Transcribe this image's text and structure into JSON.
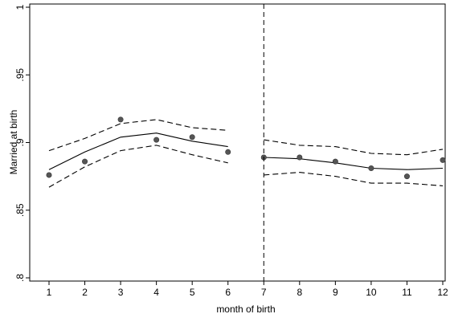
{
  "chart_data": {
    "type": "scatter",
    "title": "",
    "xlabel": "month of birth",
    "ylabel": "Married at birth",
    "xlim": [
      1,
      12
    ],
    "ylim": [
      0.8,
      1.0
    ],
    "xticks": [
      1,
      2,
      3,
      4,
      5,
      6,
      7,
      8,
      9,
      10,
      11,
      12
    ],
    "yticks": [
      0.8,
      0.85,
      0.9,
      0.95,
      1
    ],
    "ytick_labels": [
      ".8",
      ".85",
      ".9",
      ".95",
      "1"
    ],
    "grid": false,
    "cutoff_x": 7,
    "points": {
      "x": [
        1,
        2,
        3,
        4,
        5,
        6,
        7,
        8,
        9,
        10,
        11,
        12
      ],
      "y": [
        0.876,
        0.886,
        0.917,
        0.902,
        0.904,
        0.893,
        0.889,
        0.889,
        0.886,
        0.881,
        0.875,
        0.887
      ]
    },
    "fit_left": {
      "x": [
        1,
        2,
        3,
        4,
        5,
        6
      ],
      "fit": [
        0.88,
        0.893,
        0.904,
        0.907,
        0.901,
        0.897
      ],
      "ci_upper": [
        0.894,
        0.903,
        0.914,
        0.917,
        0.911,
        0.909
      ],
      "ci_lower": [
        0.867,
        0.882,
        0.894,
        0.898,
        0.891,
        0.885
      ]
    },
    "fit_right": {
      "x": [
        7,
        8,
        9,
        10,
        11,
        12
      ],
      "fit": [
        0.889,
        0.888,
        0.885,
        0.881,
        0.88,
        0.881
      ],
      "ci_upper": [
        0.902,
        0.898,
        0.897,
        0.892,
        0.891,
        0.895
      ],
      "ci_lower": [
        0.876,
        0.878,
        0.875,
        0.87,
        0.87,
        0.868
      ]
    }
  }
}
